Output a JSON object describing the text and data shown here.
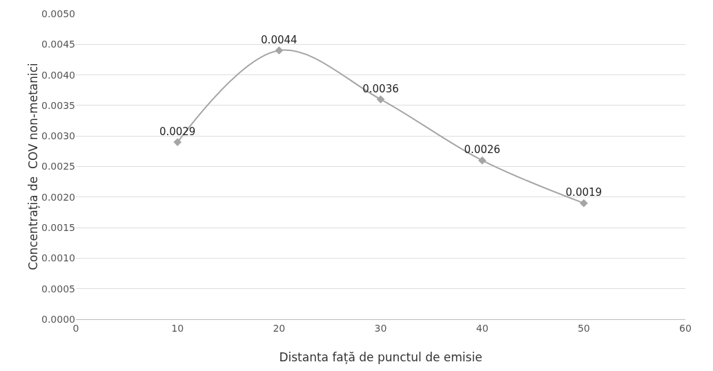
{
  "chart_data": {
    "type": "line",
    "xlabel": "Distanta față de punctul de emisie",
    "ylabel": "Concentrația de  COV non-metanici",
    "x": [
      10,
      20,
      30,
      40,
      50
    ],
    "series": [
      {
        "color": "#a5a5a5",
        "values": [
          0.0029,
          0.0044,
          0.0036,
          0.0026,
          0.0019
        ]
      }
    ],
    "xlim": [
      0,
      60
    ],
    "xticks": [
      0,
      10,
      20,
      30,
      40,
      50,
      60
    ],
    "ylim": [
      0,
      0.005
    ],
    "yticks": [
      {
        "value": 0,
        "label": "0.0000"
      },
      {
        "value": 0.0005,
        "label": "0.0005"
      },
      {
        "value": 0.001,
        "label": "0.0010"
      },
      {
        "value": 0.0015,
        "label": "0.0015"
      },
      {
        "value": 0.002,
        "label": "0.0020"
      },
      {
        "value": 0.0025,
        "label": "0.0025"
      },
      {
        "value": 0.003,
        "label": "0.0030"
      },
      {
        "value": 0.0035,
        "label": "0.0035"
      },
      {
        "value": 0.004,
        "label": "0.0040"
      },
      {
        "value": 0.0045,
        "label": "0.0045"
      },
      {
        "value": 0.005,
        "label": "0.0050"
      }
    ],
    "grid": "y",
    "marker": "diamond",
    "line_style": "solid",
    "data_labels": true
  }
}
